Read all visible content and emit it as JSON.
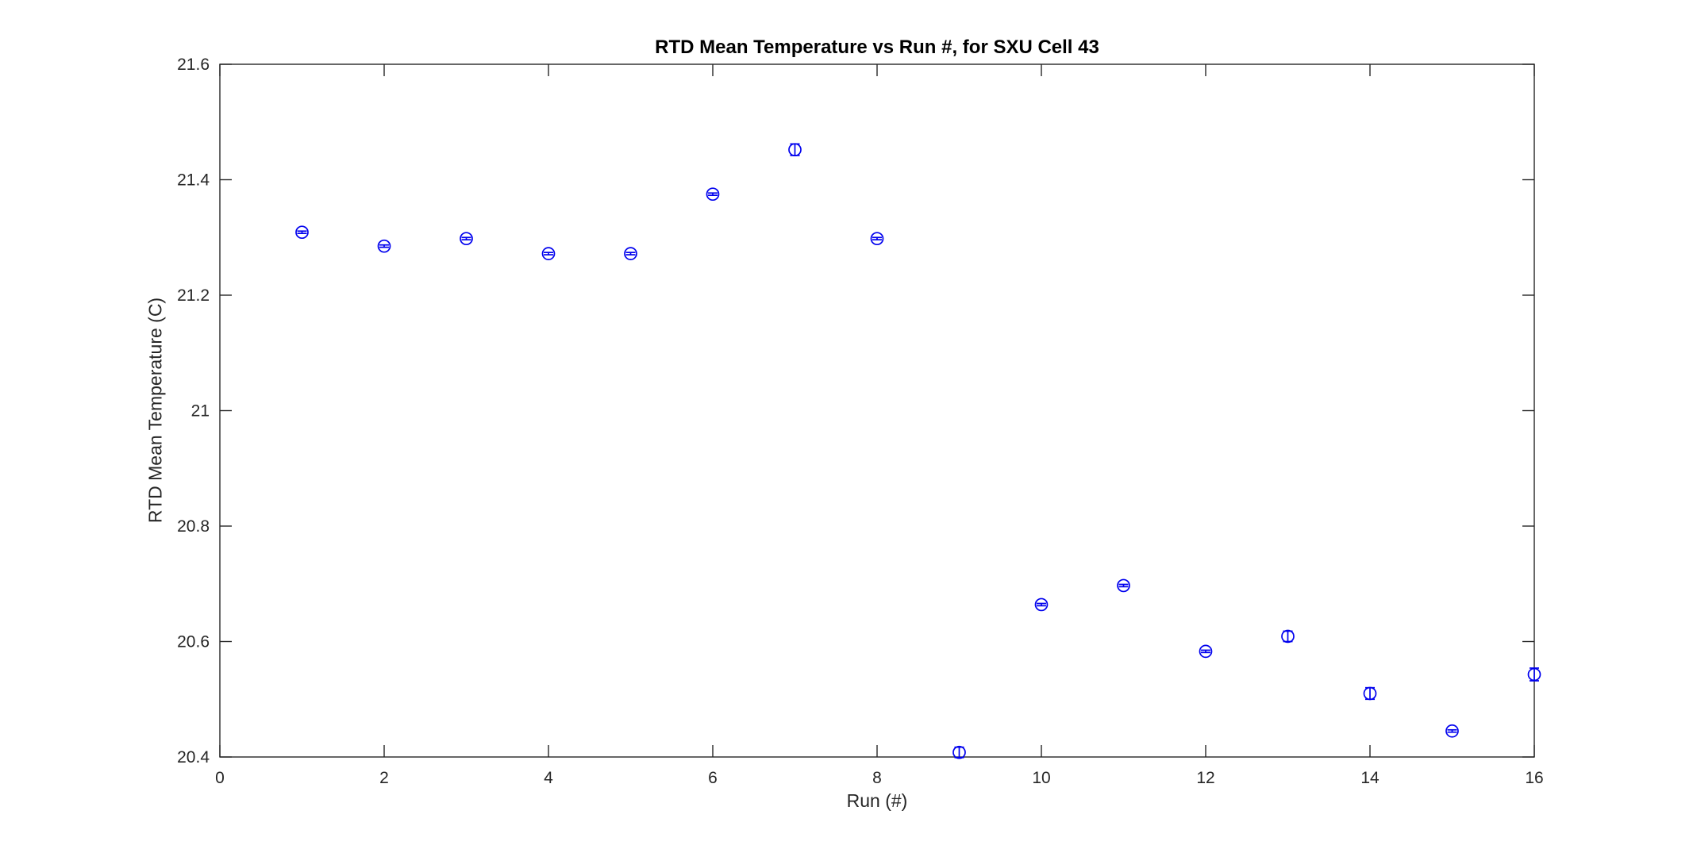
{
  "figure": {
    "title": "RTD Mean Temperature vs Run #, for SXU Cell 43",
    "xlabel": "Run (#)",
    "ylabel": "RTD Mean Temperature (C)",
    "background_color": "#ffffff",
    "axis_color": "#262626",
    "title_color": "#000000"
  },
  "chart_data": {
    "type": "scatter",
    "subtype": "errorbar",
    "title": "RTD Mean Temperature vs Run #, for SXU Cell 43",
    "xlabel": "Run (#)",
    "ylabel": "RTD Mean Temperature (C)",
    "grid": false,
    "legend_position": "none",
    "box": true,
    "tick_direction": "in",
    "xlim": [
      0,
      16
    ],
    "ylim": [
      20.4,
      21.6
    ],
    "x_ticks": [
      0,
      2,
      4,
      6,
      8,
      10,
      12,
      14,
      16
    ],
    "x_tick_labels": [
      "0",
      "2",
      "4",
      "6",
      "8",
      "10",
      "12",
      "14",
      "16"
    ],
    "y_ticks": [
      20.4,
      20.6,
      20.8,
      21.0,
      21.2,
      21.4,
      21.6
    ],
    "y_tick_labels": [
      "20.4",
      "20.6",
      "20.8",
      "21",
      "21.2",
      "21.4",
      "21.6"
    ],
    "series": [
      {
        "name": "RTD mean temperature",
        "marker": "open-circle",
        "marker_size_px": 15,
        "color": "#0000EE",
        "x": [
          1,
          2,
          3,
          4,
          5,
          6,
          7,
          8,
          9,
          10,
          11,
          12,
          13,
          14,
          15,
          16
        ],
        "values": [
          21.309,
          21.285,
          21.298,
          21.272,
          21.272,
          21.375,
          21.452,
          21.298,
          20.408,
          20.664,
          20.697,
          20.583,
          20.609,
          20.51,
          20.445,
          20.543
        ],
        "yerr": [
          0.002,
          0.002,
          0.002,
          0.002,
          0.002,
          0.002,
          0.01,
          0.002,
          0.009,
          0.002,
          0.002,
          0.002,
          0.009,
          0.01,
          0.002,
          0.011
        ]
      }
    ]
  }
}
